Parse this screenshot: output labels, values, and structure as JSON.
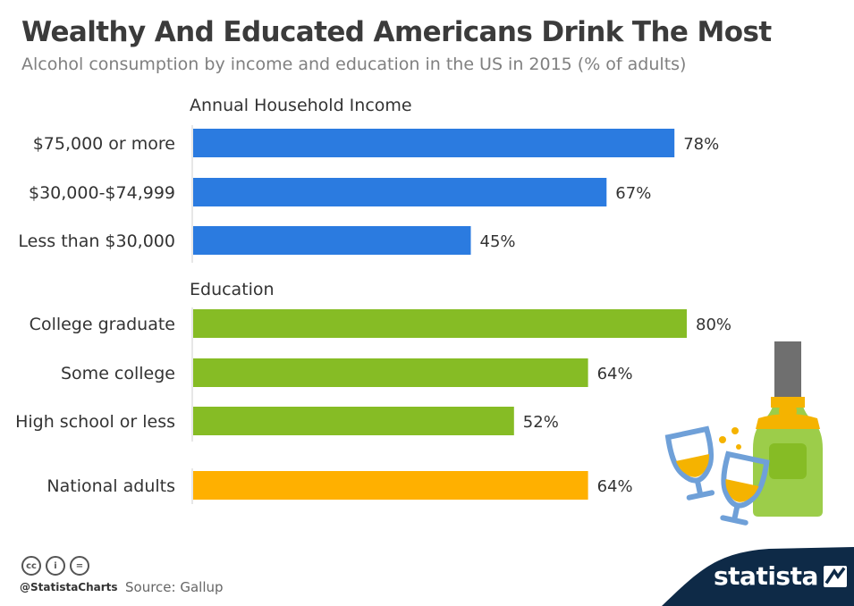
{
  "header": {
    "title": "Wealthy And Educated Americans Drink The Most",
    "subtitle": "Alcohol consumption by income and education in the US in 2015 (% of adults)"
  },
  "chart_data": {
    "type": "bar",
    "orientation": "horizontal",
    "unit": "%",
    "max": 100,
    "groups": [
      {
        "name": "Annual Household Income",
        "color": "#2b7be0",
        "categories": [
          "$75,000 or more",
          "$30,000-$74,999",
          "Less than $30,000"
        ],
        "values": [
          78,
          67,
          45
        ]
      },
      {
        "name": "Education",
        "color": "#86bc25",
        "categories": [
          "College graduate",
          "Some college",
          "High school or less"
        ],
        "values": [
          80,
          64,
          52
        ]
      },
      {
        "name": "",
        "color": "#ffb000",
        "categories": [
          "National adults"
        ],
        "values": [
          64
        ]
      }
    ]
  },
  "footer": {
    "cc_icons": [
      "cc",
      "i",
      "="
    ],
    "handle": "@StatistaCharts",
    "source": "Source: Gallup",
    "brand": "statista",
    "brand_color": "#0e2a47"
  },
  "decoration": {
    "icon": "champagne-bottle-and-glasses-icon"
  }
}
